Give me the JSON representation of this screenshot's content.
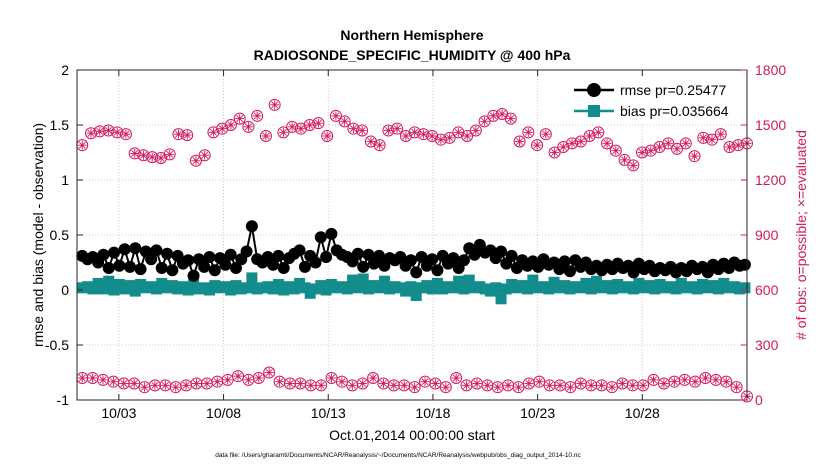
{
  "chart_data": {
    "type": "line",
    "title": "Northern Hemisphere",
    "subtitle": "RADIOSONDE_SPECIFIC_HUMIDITY @ 400 hPa",
    "xlabel": "Oct.01,2014 00:00:00 start",
    "ylabel": "rmse and bias (model - observation)",
    "y2label": "# of obs: o=possible; ×=evaluated",
    "footnote": "data file: /Users/gharamti/Documents/NCAR/Reanalysis/~/Documents/NCAR/Reanalysis/webpub/obs_diag_output_2014-10.nc",
    "xlim": [
      1,
      33
    ],
    "ylim": [
      -1,
      2
    ],
    "y2lim": [
      0,
      1800
    ],
    "x_ticks": [
      3,
      8,
      13,
      18,
      23,
      28
    ],
    "x_tick_labels": [
      "10/03",
      "10/08",
      "10/13",
      "10/18",
      "10/23",
      "10/28"
    ],
    "y_ticks": [
      -1,
      -0.5,
      0,
      0.5,
      1,
      1.5,
      2
    ],
    "y_tick_labels": [
      "-1",
      "-0.5",
      "0",
      "0.5",
      "1",
      "1.5",
      "2"
    ],
    "y2_ticks": [
      0,
      300,
      600,
      900,
      1200,
      1500,
      1800
    ],
    "y2_tick_labels": [
      "0",
      "300",
      "600",
      "900",
      "1200",
      "1500",
      "1800"
    ],
    "legend": [
      "rmse pr=0.25477",
      "bias pr=0.035664"
    ],
    "legend_position": "top-right",
    "colors": {
      "rmse": "#000000",
      "bias": "#138c8c",
      "obs": "#d1185f"
    },
    "series": [
      {
        "name": "rmse",
        "axis": "left",
        "values": [
          0.31,
          0.28,
          0.3,
          0.25,
          0.32,
          0.2,
          0.34,
          0.22,
          0.37,
          0.21,
          0.38,
          0.19,
          0.35,
          0.28,
          0.36,
          0.2,
          0.33,
          0.18,
          0.31,
          0.24,
          0.27,
          0.13,
          0.28,
          0.21,
          0.3,
          0.18,
          0.29,
          0.23,
          0.32,
          0.2,
          0.28,
          0.35,
          0.58,
          0.28,
          0.25,
          0.3,
          0.23,
          0.31,
          0.2,
          0.29,
          0.33,
          0.36,
          0.21,
          0.31,
          0.25,
          0.48,
          0.3,
          0.51,
          0.36,
          0.32,
          0.3,
          0.26,
          0.33,
          0.21,
          0.32,
          0.24,
          0.31,
          0.22,
          0.29,
          0.27,
          0.3,
          0.22,
          0.27,
          0.16,
          0.3,
          0.22,
          0.28,
          0.18,
          0.31,
          0.24,
          0.29,
          0.2,
          0.27,
          0.38,
          0.32,
          0.41,
          0.34,
          0.36,
          0.29,
          0.35,
          0.24,
          0.31,
          0.2,
          0.27,
          0.22,
          0.26,
          0.21,
          0.28,
          0.23,
          0.25,
          0.19,
          0.26,
          0.17,
          0.27,
          0.21,
          0.25,
          0.19,
          0.22,
          0.18,
          0.23,
          0.19,
          0.24,
          0.2,
          0.22,
          0.16,
          0.24,
          0.19,
          0.22,
          0.17,
          0.2,
          0.18,
          0.21,
          0.16,
          0.2,
          0.17,
          0.22,
          0.19,
          0.21,
          0.16,
          0.23,
          0.19,
          0.24,
          0.2,
          0.25,
          0.22,
          0.23
        ]
      },
      {
        "name": "bias",
        "axis": "left",
        "values": [
          0.02,
          0.03,
          0.01,
          0.06,
          0.01,
          0.08,
          0.0,
          0.05,
          0.01,
          0.04,
          -0.01,
          0.05,
          0.02,
          0.03,
          0.01,
          0.06,
          0.02,
          0.04,
          0.01,
          0.03,
          0.0,
          0.05,
          0.01,
          0.02,
          0.0,
          0.04,
          0.02,
          0.03,
          0.0,
          0.04,
          0.01,
          0.02,
          0.11,
          0.01,
          0.02,
          0.03,
          0.01,
          0.05,
          0.0,
          0.03,
          0.01,
          0.06,
          0.02,
          -0.03,
          0.01,
          0.04,
          0.0,
          0.05,
          0.02,
          0.03,
          0.01,
          0.09,
          0.02,
          0.1,
          0.01,
          0.04,
          0.02,
          0.08,
          0.01,
          0.03,
          0.02,
          -0.01,
          0.03,
          -0.05,
          0.02,
          0.04,
          0.01,
          0.06,
          0.01,
          0.03,
          0.02,
          0.08,
          0.01,
          0.09,
          0.02,
          0.03,
          0.01,
          -0.01,
          0.02,
          -0.08,
          0.01,
          0.05,
          0.02,
          0.04,
          0.01,
          0.09,
          0.02,
          0.03,
          0.01,
          0.07,
          0.02,
          0.04,
          0.01,
          0.03,
          0.02,
          0.06,
          0.01,
          0.08,
          0.02,
          0.04,
          0.01,
          0.05,
          0.02,
          0.03,
          0.01,
          0.06,
          0.02,
          0.04,
          0.01,
          0.05,
          0.02,
          0.03,
          0.01,
          0.06,
          0.02,
          0.03,
          0.01,
          0.05,
          0.02,
          0.04,
          0.01,
          0.06,
          0.02,
          0.03,
          0.01,
          0.02
        ]
      },
      {
        "name": "obs_possible_upper",
        "axis": "right",
        "values": [
          1390,
          1455,
          1465,
          1470,
          1460,
          1450,
          1345,
          1335,
          1325,
          1320,
          1340,
          1450,
          1445,
          1305,
          1335,
          1460,
          1480,
          1500,
          1535,
          1490,
          1550,
          1440,
          1610,
          1460,
          1490,
          1480,
          1500,
          1510,
          1440,
          1550,
          1520,
          1480,
          1470,
          1410,
          1390,
          1470,
          1480,
          1440,
          1460,
          1450,
          1440,
          1420,
          1430,
          1460,
          1440,
          1470,
          1520,
          1550,
          1560,
          1535,
          1410,
          1460,
          1390,
          1450,
          1350,
          1380,
          1400,
          1410,
          1440,
          1460,
          1400,
          1360,
          1310,
          1280,
          1350,
          1360,
          1380,
          1400,
          1370,
          1400,
          1330,
          1430,
          1420,
          1450,
          1380,
          1390,
          1400
        ]
      },
      {
        "name": "obs_possible_lower",
        "axis": "right",
        "values": [
          120,
          120,
          110,
          100,
          90,
          90,
          70,
          80,
          80,
          70,
          80,
          90,
          90,
          100,
          110,
          130,
          110,
          120,
          150,
          100,
          90,
          90,
          80,
          80,
          120,
          100,
          80,
          90,
          120,
          90,
          80,
          80,
          70,
          100,
          90,
          70,
          120,
          80,
          90,
          80,
          70,
          80,
          70,
          90,
          100,
          80,
          80,
          70,
          90,
          80,
          80,
          70,
          90,
          80,
          80,
          110,
          90,
          100,
          110,
          100,
          120,
          110,
          100,
          70,
          20
        ]
      }
    ]
  }
}
